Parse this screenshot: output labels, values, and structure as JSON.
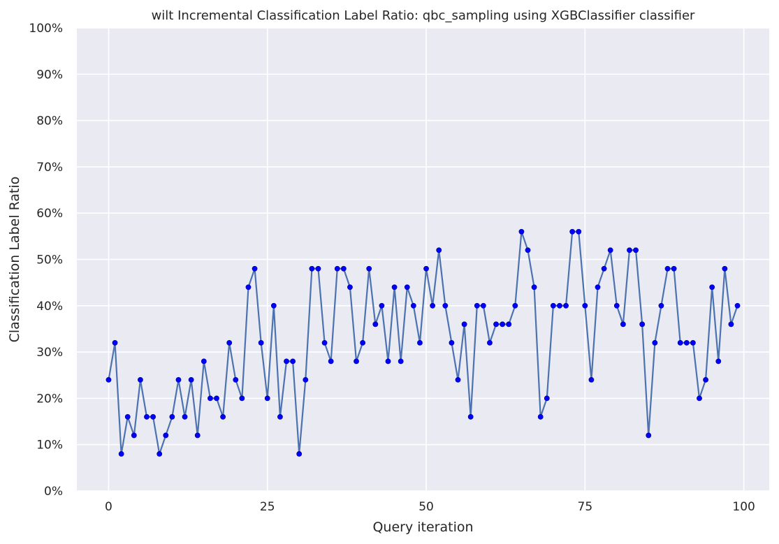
{
  "chart_data": {
    "type": "line",
    "title": "wilt Incremental Classification Label Ratio: qbc_sampling using XGBClassifier classifier",
    "xlabel": "Query iteration",
    "ylabel": "Classification Label Ratio",
    "xlim": [
      -5,
      104
    ],
    "ylim": [
      0,
      1
    ],
    "xticks": [
      0,
      25,
      50,
      75,
      100
    ],
    "yticks": [
      0,
      0.1,
      0.2,
      0.3,
      0.4,
      0.5,
      0.6,
      0.7,
      0.8,
      0.9,
      1.0
    ],
    "ytick_labels": [
      "0%",
      "10%",
      "20%",
      "30%",
      "40%",
      "50%",
      "60%",
      "70%",
      "80%",
      "90%",
      "100%"
    ],
    "grid": true,
    "line_color": "#4c72b0",
    "marker_color": "#0000ff",
    "background_color": "#eaeaf2",
    "series": [
      {
        "x": [
          0,
          1,
          2,
          3,
          4,
          5,
          6,
          7,
          8,
          9,
          10,
          11,
          12,
          13,
          14,
          15,
          16,
          17,
          18,
          19,
          20,
          21,
          22,
          23,
          24,
          25,
          26,
          27,
          28,
          29,
          30,
          31,
          32,
          33,
          34,
          35,
          36,
          37,
          38,
          39,
          40,
          41,
          42,
          43,
          44,
          45,
          46,
          47,
          48,
          49,
          50,
          51,
          52,
          53,
          54,
          55,
          56,
          57,
          58,
          59,
          60,
          61,
          62,
          63,
          64,
          65,
          66,
          67,
          68,
          69,
          70,
          71,
          72,
          73,
          74,
          75,
          76,
          77,
          78,
          79,
          80,
          81,
          82,
          83,
          84,
          85,
          86,
          87,
          88,
          89,
          90,
          91,
          92,
          93,
          94,
          95,
          96,
          97,
          98,
          99
        ],
        "values": [
          0.24,
          0.32,
          0.08,
          0.16,
          0.12,
          0.24,
          0.16,
          0.16,
          0.08,
          0.12,
          0.16,
          0.24,
          0.16,
          0.24,
          0.12,
          0.28,
          0.2,
          0.2,
          0.16,
          0.32,
          0.24,
          0.2,
          0.44,
          0.48,
          0.32,
          0.2,
          0.4,
          0.16,
          0.28,
          0.28,
          0.08,
          0.24,
          0.48,
          0.48,
          0.32,
          0.28,
          0.48,
          0.48,
          0.44,
          0.28,
          0.32,
          0.48,
          0.36,
          0.4,
          0.28,
          0.44,
          0.28,
          0.44,
          0.4,
          0.32,
          0.48,
          0.4,
          0.52,
          0.4,
          0.32,
          0.24,
          0.36,
          0.16,
          0.4,
          0.4,
          0.32,
          0.36,
          0.36,
          0.36,
          0.4,
          0.56,
          0.52,
          0.44,
          0.16,
          0.2,
          0.4,
          0.4,
          0.4,
          0.56,
          0.56,
          0.4,
          0.24,
          0.44,
          0.48,
          0.52,
          0.4,
          0.36,
          0.52,
          0.52,
          0.36,
          0.12,
          0.32,
          0.4,
          0.48,
          0.48,
          0.32,
          0.32,
          0.32,
          0.2,
          0.24,
          0.44,
          0.28,
          0.48,
          0.36,
          0.4
        ]
      }
    ]
  }
}
